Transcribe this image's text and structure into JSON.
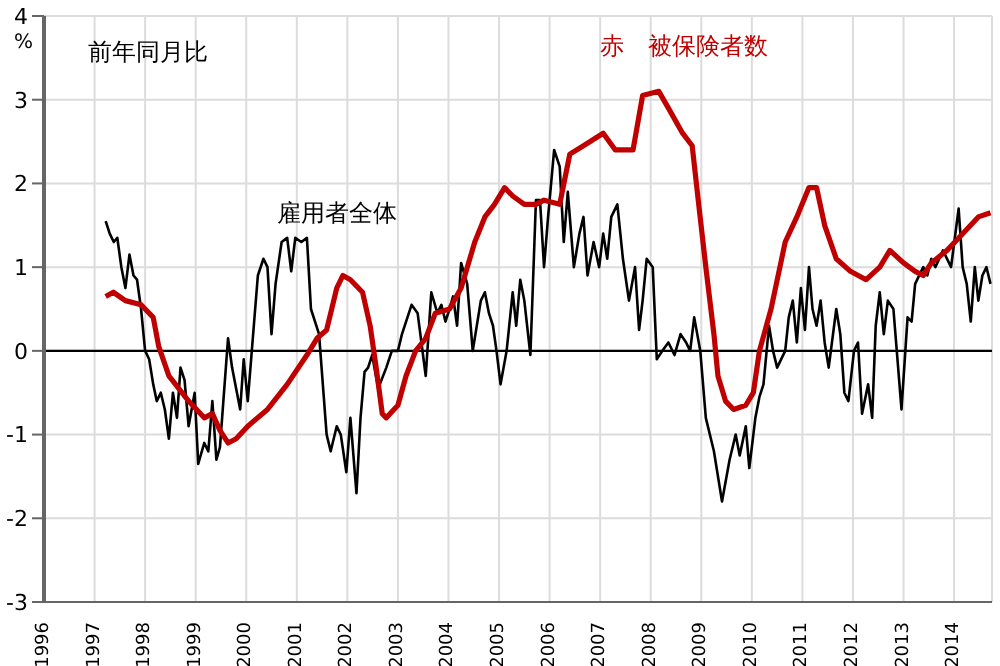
{
  "chart_data": {
    "type": "line",
    "annotations": [
      "前年同月比"
    ],
    "ylabel": "%",
    "xlim": [
      1996,
      2014.75
    ],
    "xticks": [
      1996,
      1997,
      1998,
      1999,
      2000,
      2001,
      2002,
      2003,
      2004,
      2005,
      2006,
      2007,
      2008,
      2009,
      2010,
      2011,
      2012,
      2013,
      2014
    ],
    "ylim": [
      -3,
      4
    ],
    "yticks": [
      -3,
      -2,
      -1,
      0,
      1,
      2,
      3,
      4
    ],
    "grid": true,
    "legend": false,
    "marker": "none",
    "line_style": "solid",
    "ref_lines": [
      {
        "axis": "y",
        "value": 0,
        "color": "#000000"
      }
    ],
    "series": [
      {
        "name": "雇用者全体",
        "color": "#000000",
        "x": [
          1997.22,
          1997.3,
          1997.38,
          1997.45,
          1997.53,
          1997.61,
          1997.69,
          1997.77,
          1997.84,
          1997.92,
          1998.0,
          1998.08,
          1998.16,
          1998.23,
          1998.31,
          1998.39,
          1998.47,
          1998.55,
          1998.63,
          1998.7,
          1998.78,
          1998.86,
          1998.98,
          1999.05,
          1999.17,
          1999.25,
          1999.33,
          1999.41,
          1999.48,
          1999.56,
          1999.64,
          1999.72,
          1999.88,
          1999.95,
          2000.03,
          2000.11,
          2000.23,
          2000.34,
          2000.42,
          2000.5,
          2000.58,
          2000.7,
          2000.81,
          2000.89,
          2000.97,
          2001.09,
          2001.2,
          2001.28,
          2001.44,
          2001.59,
          2001.67,
          2001.79,
          2001.87,
          2001.98,
          2002.06,
          2002.18,
          2002.26,
          2002.34,
          2002.41,
          2002.49,
          2002.61,
          2002.77,
          2002.88,
          2003.0,
          2003.08,
          2003.27,
          2003.39,
          2003.55,
          2003.66,
          2003.78,
          2003.86,
          2003.94,
          2004.02,
          2004.09,
          2004.17,
          2004.25,
          2004.37,
          2004.48,
          2004.64,
          2004.72,
          2004.8,
          2004.88,
          2004.95,
          2005.03,
          2005.15,
          2005.27,
          2005.34,
          2005.42,
          2005.5,
          2005.62,
          2005.73,
          2005.81,
          2005.89,
          2005.97,
          2006.09,
          2006.2,
          2006.28,
          2006.36,
          2006.48,
          2006.59,
          2006.67,
          2006.75,
          2006.87,
          2006.98,
          2007.06,
          2007.14,
          2007.22,
          2007.34,
          2007.45,
          2007.57,
          2007.69,
          2007.77,
          2007.84,
          2007.92,
          2008.04,
          2008.12,
          2008.23,
          2008.35,
          2008.47,
          2008.59,
          2008.7,
          2008.78,
          2008.86,
          2008.98,
          2009.09,
          2009.25,
          2009.41,
          2009.56,
          2009.68,
          2009.76,
          2009.88,
          2009.95,
          2010.07,
          2010.15,
          2010.23,
          2010.34,
          2010.42,
          2010.5,
          2010.66,
          2010.73,
          2010.81,
          2010.89,
          2010.97,
          2011.05,
          2011.13,
          2011.2,
          2011.28,
          2011.36,
          2011.44,
          2011.52,
          2011.67,
          2011.75,
          2011.83,
          2011.91,
          2012.02,
          2012.1,
          2012.18,
          2012.3,
          2012.38,
          2012.45,
          2012.53,
          2012.61,
          2012.69,
          2012.8,
          2012.88,
          2012.96,
          2013.08,
          2013.16,
          2013.23,
          2013.39,
          2013.47,
          2013.55,
          2013.63,
          2013.78,
          2013.94,
          2014.09,
          2014.17,
          2014.25,
          2014.33,
          2014.41,
          2014.48,
          2014.56,
          2014.64,
          2014.72
        ],
        "values": [
          1.55,
          1.4,
          1.3,
          1.35,
          1.0,
          0.75,
          1.15,
          0.9,
          0.85,
          0.5,
          0.0,
          -0.1,
          -0.4,
          -0.6,
          -0.5,
          -0.7,
          -1.05,
          -0.5,
          -0.8,
          -0.2,
          -0.35,
          -0.9,
          -0.5,
          -1.35,
          -1.1,
          -1.2,
          -0.6,
          -1.3,
          -1.15,
          -0.5,
          0.15,
          -0.2,
          -0.7,
          -0.1,
          -0.6,
          0.0,
          0.9,
          1.1,
          1.0,
          0.2,
          0.8,
          1.3,
          1.35,
          0.95,
          1.35,
          1.3,
          1.35,
          0.5,
          0.2,
          -1.0,
          -1.2,
          -0.9,
          -1.0,
          -1.45,
          -0.8,
          -1.7,
          -0.8,
          -0.25,
          -0.2,
          -0.05,
          -0.45,
          -0.2,
          0.0,
          0.0,
          0.2,
          0.55,
          0.45,
          -0.3,
          0.7,
          0.45,
          0.55,
          0.35,
          0.5,
          0.65,
          0.3,
          1.05,
          0.8,
          0.0,
          0.6,
          0.7,
          0.45,
          0.3,
          0.0,
          -0.4,
          0.0,
          0.7,
          0.3,
          0.85,
          0.6,
          -0.05,
          1.8,
          1.8,
          1.0,
          1.6,
          2.4,
          2.2,
          1.3,
          1.9,
          1.0,
          1.4,
          1.6,
          0.9,
          1.3,
          1.0,
          1.4,
          1.1,
          1.6,
          1.75,
          1.1,
          0.6,
          1.0,
          0.25,
          0.6,
          1.1,
          1.0,
          -0.1,
          0.0,
          0.1,
          -0.05,
          0.2,
          0.1,
          0.0,
          0.4,
          0.0,
          -0.8,
          -1.2,
          -1.8,
          -1.3,
          -1.0,
          -1.25,
          -0.9,
          -1.4,
          -0.8,
          -0.55,
          -0.4,
          0.3,
          0.0,
          -0.2,
          0.0,
          0.4,
          0.6,
          0.1,
          0.75,
          0.25,
          1.0,
          0.5,
          0.3,
          0.6,
          0.1,
          -0.2,
          0.5,
          0.2,
          -0.5,
          -0.6,
          0.0,
          0.1,
          -0.75,
          -0.4,
          -0.8,
          0.3,
          0.7,
          0.2,
          0.6,
          0.5,
          -0.1,
          -0.7,
          0.4,
          0.35,
          0.8,
          1.0,
          0.9,
          1.1,
          1.0,
          1.2,
          1.0,
          1.7,
          1.0,
          0.8,
          0.35,
          1.0,
          0.6,
          0.9,
          1.0,
          0.8
        ]
      },
      {
        "name": "赤　被保険者数",
        "color": "#c00000",
        "x": [
          1997.22,
          1997.37,
          1997.61,
          1997.92,
          1998.16,
          1998.27,
          1998.47,
          1998.86,
          1999.17,
          1999.33,
          1999.48,
          1999.64,
          1999.8,
          2000.03,
          2000.42,
          2000.81,
          2001.2,
          2001.4,
          2001.59,
          2001.79,
          2001.91,
          2002.06,
          2002.3,
          2002.45,
          2002.57,
          2002.69,
          2002.77,
          2003.0,
          2003.16,
          2003.35,
          2003.55,
          2003.74,
          2004.02,
          2004.25,
          2004.52,
          2004.72,
          2004.91,
          2005.11,
          2005.27,
          2005.5,
          2005.73,
          2005.89,
          2006.2,
          2006.4,
          2006.67,
          2007.06,
          2007.3,
          2007.65,
          2007.84,
          2008.16,
          2008.35,
          2008.63,
          2008.82,
          2008.94,
          2009.09,
          2009.25,
          2009.33,
          2009.48,
          2009.64,
          2009.88,
          2010.03,
          2010.15,
          2010.38,
          2010.66,
          2010.89,
          2011.13,
          2011.28,
          2011.44,
          2011.67,
          2011.95,
          2012.26,
          2012.53,
          2012.73,
          2013.0,
          2013.23,
          2013.39,
          2013.55,
          2013.86,
          2014.17,
          2014.48,
          2014.72
        ],
        "values": [
          0.65,
          0.7,
          0.6,
          0.55,
          0.4,
          0.05,
          -0.3,
          -0.6,
          -0.8,
          -0.75,
          -0.95,
          -1.1,
          -1.05,
          -0.9,
          -0.7,
          -0.4,
          -0.05,
          0.15,
          0.25,
          0.75,
          0.9,
          0.85,
          0.7,
          0.3,
          -0.2,
          -0.75,
          -0.8,
          -0.65,
          -0.3,
          0.0,
          0.15,
          0.45,
          0.5,
          0.75,
          1.3,
          1.6,
          1.75,
          1.95,
          1.85,
          1.75,
          1.75,
          1.8,
          1.75,
          2.35,
          2.45,
          2.6,
          2.4,
          2.4,
          3.05,
          3.1,
          2.9,
          2.6,
          2.45,
          1.8,
          1.0,
          0.2,
          -0.3,
          -0.6,
          -0.7,
          -0.65,
          -0.5,
          0.0,
          0.5,
          1.3,
          1.6,
          1.95,
          1.95,
          1.5,
          1.1,
          0.95,
          0.85,
          1.0,
          1.2,
          1.05,
          0.95,
          0.9,
          1.05,
          1.2,
          1.4,
          1.6,
          1.65
        ]
      }
    ]
  }
}
